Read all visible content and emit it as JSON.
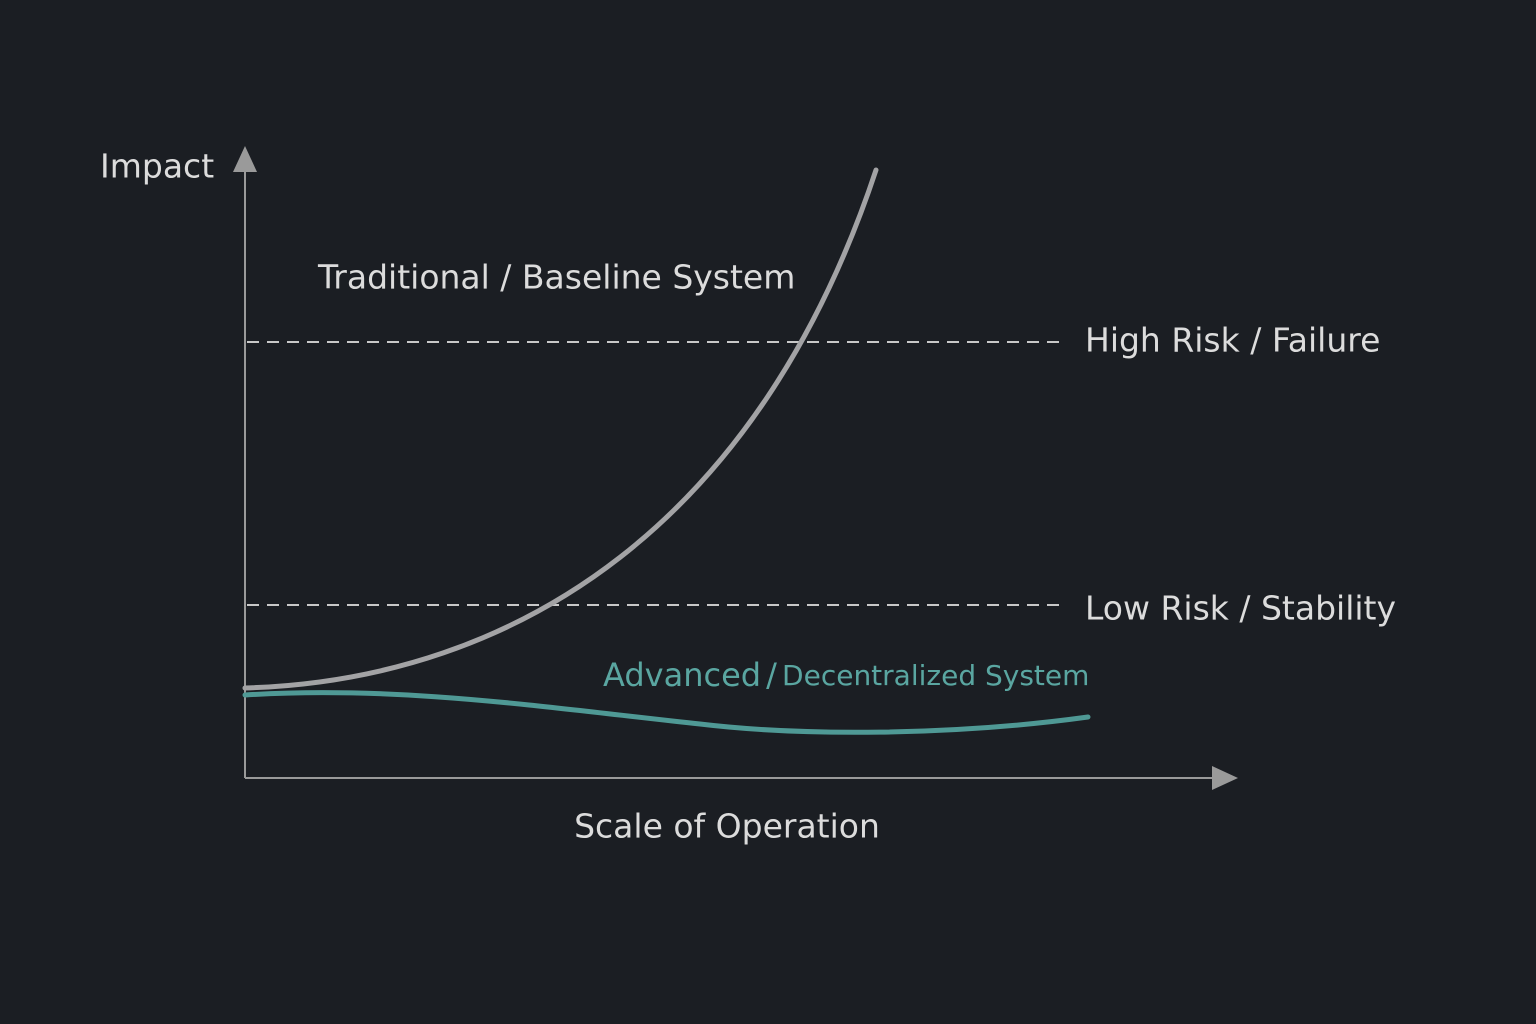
{
  "axes": {
    "y_label": "Impact",
    "x_label": "Scale of Operation"
  },
  "thresholds": [
    {
      "label": "High Risk / Failure"
    },
    {
      "label": "Low Risk / Stability"
    }
  ],
  "curves": [
    {
      "label": "Traditional / Baseline System"
    },
    {
      "label_parts": [
        "Advanced",
        "/",
        "Decentralized System"
      ]
    }
  ]
}
